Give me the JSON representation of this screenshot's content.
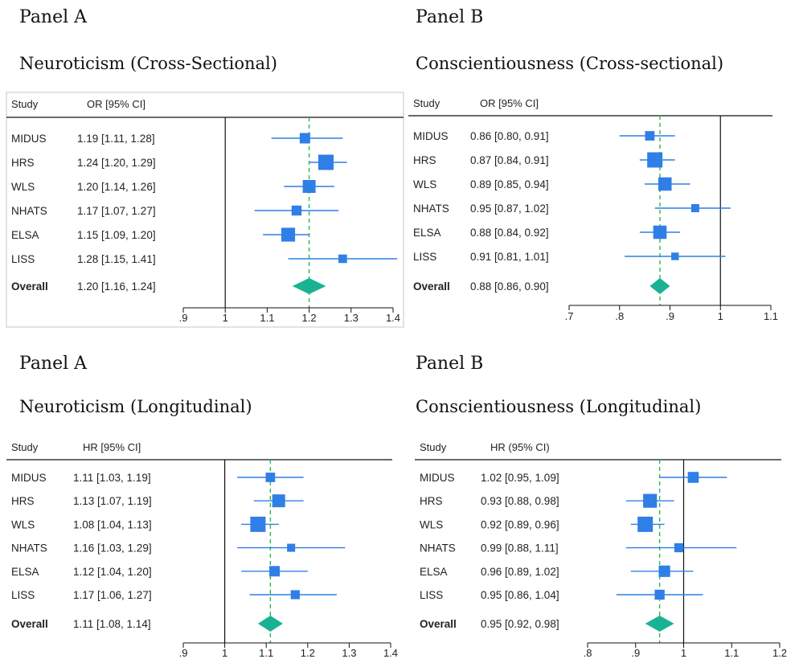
{
  "chart_data": [
    {
      "type": "forest",
      "panel_label": "Panel A",
      "title": "Neuroticism (Cross-Sectional)",
      "col_study": "Study",
      "col_effect": "OR [95% CI]",
      "null_value": 1,
      "overall_value": 1.2,
      "xlim": [
        0.9,
        1.4
      ],
      "ticks": [
        0.9,
        1,
        1.1,
        1.2,
        1.3,
        1.4
      ],
      "tick_labels": [
        ".9",
        "1",
        "1.1",
        "1.2",
        "1.3",
        "1.4"
      ],
      "studies": [
        {
          "name": "MIDUS",
          "label": "1.19 [1.11,  1.28]",
          "est": 1.19,
          "lo": 1.11,
          "hi": 1.28,
          "weight": 0.5
        },
        {
          "name": "HRS",
          "label": "1.24 [1.20,  1.29]",
          "est": 1.24,
          "lo": 1.2,
          "hi": 1.29,
          "weight": 1.0
        },
        {
          "name": "WLS",
          "label": "1.20 [1.14,  1.26]",
          "est": 1.2,
          "lo": 1.14,
          "hi": 1.26,
          "weight": 0.75
        },
        {
          "name": "NHATS",
          "label": "1.17 [1.07,  1.27]",
          "est": 1.17,
          "lo": 1.07,
          "hi": 1.27,
          "weight": 0.45
        },
        {
          "name": "ELSA",
          "label": "1.15 [1.09,  1.20]",
          "est": 1.15,
          "lo": 1.09,
          "hi": 1.2,
          "weight": 0.85
        },
        {
          "name": "LISS",
          "label": "1.28 [1.15,  1.41]",
          "est": 1.28,
          "lo": 1.15,
          "hi": 1.41,
          "weight": 0.3
        }
      ],
      "overall": {
        "name": "Overall",
        "label": "1.20 [1.16,  1.24]",
        "est": 1.2,
        "lo": 1.16,
        "hi": 1.24
      }
    },
    {
      "type": "forest",
      "panel_label": "Panel B",
      "title": "Conscientiousness (Cross-sectional)",
      "col_study": "Study",
      "col_effect": "OR [95% CI]",
      "null_value": 1,
      "overall_value": 0.88,
      "xlim": [
        0.7,
        1.1
      ],
      "ticks": [
        0.7,
        0.8,
        0.9,
        1,
        1.1
      ],
      "tick_labels": [
        ".7",
        ".8",
        ".9",
        "1",
        "1.1"
      ],
      "studies": [
        {
          "name": "MIDUS",
          "label": "0.86 [0.80,  0.91]",
          "est": 0.86,
          "lo": 0.8,
          "hi": 0.91,
          "weight": 0.4
        },
        {
          "name": "HRS",
          "label": "0.87 [0.84,  0.91]",
          "est": 0.87,
          "lo": 0.84,
          "hi": 0.91,
          "weight": 1.0
        },
        {
          "name": "WLS",
          "label": "0.89 [0.85,  0.94]",
          "est": 0.89,
          "lo": 0.85,
          "hi": 0.94,
          "weight": 0.8
        },
        {
          "name": "NHATS",
          "label": "0.95 [0.87,  1.02]",
          "est": 0.95,
          "lo": 0.87,
          "hi": 1.02,
          "weight": 0.25
        },
        {
          "name": "ELSA",
          "label": "0.88 [0.84,  0.92]",
          "est": 0.88,
          "lo": 0.84,
          "hi": 0.92,
          "weight": 0.8
        },
        {
          "name": "LISS",
          "label": "0.91 [0.81,  1.01]",
          "est": 0.91,
          "lo": 0.81,
          "hi": 1.01,
          "weight": 0.2
        }
      ],
      "overall": {
        "name": "Overall",
        "label": "0.88 [0.86,  0.90]",
        "est": 0.88,
        "lo": 0.86,
        "hi": 0.9
      }
    },
    {
      "type": "forest",
      "panel_label": "Panel A",
      "title": "Neuroticism (Longitudinal)",
      "col_study": "Study",
      "col_effect": "HR [95% CI]",
      "null_value": 1,
      "overall_value": 1.11,
      "xlim": [
        0.9,
        1.4
      ],
      "ticks": [
        0.9,
        1,
        1.1,
        1.2,
        1.3,
        1.4
      ],
      "tick_labels": [
        ".9",
        "1",
        "1.1",
        "1.2",
        "1.3",
        "1.4"
      ],
      "studies": [
        {
          "name": "MIDUS",
          "label": "1.11 [1.03,  1.19]",
          "est": 1.11,
          "lo": 1.03,
          "hi": 1.19,
          "weight": 0.4
        },
        {
          "name": "HRS",
          "label": "1.13 [1.07,  1.19]",
          "est": 1.13,
          "lo": 1.07,
          "hi": 1.19,
          "weight": 0.75
        },
        {
          "name": "WLS",
          "label": "1.08 [1.04,  1.13]",
          "est": 1.08,
          "lo": 1.04,
          "hi": 1.13,
          "weight": 1.0
        },
        {
          "name": "NHATS",
          "label": "1.16 [1.03,  1.29]",
          "est": 1.16,
          "lo": 1.03,
          "hi": 1.29,
          "weight": 0.25
        },
        {
          "name": "ELSA",
          "label": "1.12 [1.04,  1.20]",
          "est": 1.12,
          "lo": 1.04,
          "hi": 1.2,
          "weight": 0.5
        },
        {
          "name": "LISS",
          "label": "1.17 [1.06,  1.27]",
          "est": 1.17,
          "lo": 1.06,
          "hi": 1.27,
          "weight": 0.35
        }
      ],
      "overall": {
        "name": "Overall",
        "label": "1.11 [1.08,  1.14]",
        "est": 1.11,
        "lo": 1.08,
        "hi": 1.14
      }
    },
    {
      "type": "forest",
      "panel_label": "Panel B",
      "title": "Conscientiousness (Longitudinal)",
      "col_study": "Study",
      "col_effect": "HR (95% CI)",
      "null_value": 1,
      "overall_value": 0.95,
      "xlim": [
        0.8,
        1.2
      ],
      "ticks": [
        0.8,
        0.9,
        1,
        1.1,
        1.2
      ],
      "tick_labels": [
        ".8",
        ".9",
        "1",
        "1.1",
        "1.2"
      ],
      "studies": [
        {
          "name": "MIDUS",
          "label": "1.02 [0.95,  1.09]",
          "est": 1.02,
          "lo": 0.95,
          "hi": 1.09,
          "weight": 0.55
        },
        {
          "name": "HRS",
          "label": "0.93 [0.88,  0.98]",
          "est": 0.93,
          "lo": 0.88,
          "hi": 0.98,
          "weight": 0.85
        },
        {
          "name": "WLS",
          "label": "0.92 [0.89,  0.96]",
          "est": 0.92,
          "lo": 0.89,
          "hi": 0.96,
          "weight": 1.0
        },
        {
          "name": "NHATS",
          "label": "0.99 [0.88,  1.11]",
          "est": 0.99,
          "lo": 0.88,
          "hi": 1.11,
          "weight": 0.35
        },
        {
          "name": "ELSA",
          "label": "0.96 [0.89,  1.02]",
          "est": 0.96,
          "lo": 0.89,
          "hi": 1.02,
          "weight": 0.6
        },
        {
          "name": "LISS",
          "label": "0.95 [0.86,  1.04]",
          "est": 0.95,
          "lo": 0.86,
          "hi": 1.04,
          "weight": 0.45
        }
      ],
      "overall": {
        "name": "Overall",
        "label": "0.95 [0.92,  0.98]",
        "est": 0.95,
        "lo": 0.92,
        "hi": 0.98
      }
    }
  ],
  "colors": {
    "marker": "#2f7fe6",
    "ci_line": "#2f7fe6",
    "diamond": "#19b394",
    "overall_ref": "#2cb84c",
    "null_line": "#111111",
    "frame_box": "#b9c8da"
  }
}
